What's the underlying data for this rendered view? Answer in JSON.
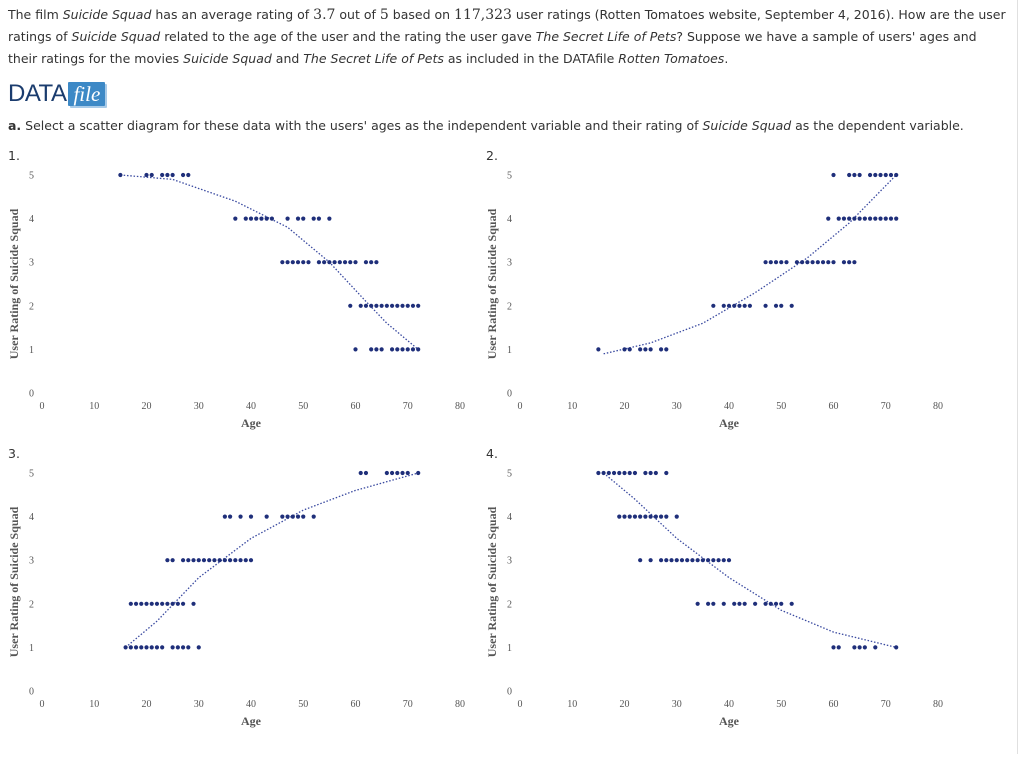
{
  "intro": {
    "t1": "The film ",
    "t2": "Suicide Squad",
    "t3": " has an average rating of ",
    "t4": "3.7",
    "t5": " out of ",
    "t6": "5",
    "t7": " based on ",
    "t8": "117,323",
    "t9": " user ratings (Rotten Tomatoes website, September 4, 2016). How are the user ratings of ",
    "t10": "Suicide Squad",
    "t11": " related to the age of the user and the rating the user gave ",
    "t12": "The Secret Life of Pets",
    "t13": "? Suppose we have a sample of users' ages and their ratings for the movies ",
    "t14": "Suicide Squad",
    "t15": " and ",
    "t16": "The Secret Life of Pets",
    "t17": " as included in the DATAfile ",
    "t18": "Rotten Tomatoes",
    "t19": "."
  },
  "datafile": {
    "data": "DATA",
    "file": "file"
  },
  "question": {
    "label": "a.",
    "t1": " Select a scatter diagram for these data with the users' ages as the independent variable and their rating of ",
    "t2": "Suicide Squad",
    "t3": " as the dependent variable."
  },
  "colors": {
    "dot": "#1f2f7a",
    "trend": "#3a4aa0"
  },
  "chart_data": [
    {
      "type": "scatter",
      "option_label": "1.",
      "xlabel": "Age",
      "ylabel": "User Rating of Suicide Squad",
      "xlim": [
        0,
        80
      ],
      "ylim": [
        0,
        5
      ],
      "xticks": [
        "0",
        "10",
        "20",
        "30",
        "40",
        "50",
        "60",
        "70",
        "80"
      ],
      "yticks": [
        "0",
        "1",
        "2",
        "3",
        "4",
        "5"
      ],
      "x": [
        15,
        20,
        21,
        23,
        24,
        25,
        27,
        28,
        37,
        39,
        40,
        41,
        42,
        43,
        44,
        47,
        49,
        50,
        52,
        53,
        55,
        46,
        47,
        48,
        49,
        50,
        51,
        53,
        54,
        55,
        56,
        57,
        58,
        59,
        60,
        62,
        63,
        64,
        59,
        61,
        62,
        63,
        64,
        65,
        66,
        67,
        68,
        69,
        70,
        71,
        72,
        60,
        63,
        64,
        65,
        67,
        68,
        69,
        70,
        71,
        72
      ],
      "y": [
        5,
        5,
        5,
        5,
        5,
        5,
        5,
        5,
        4,
        4,
        4,
        4,
        4,
        4,
        4,
        4,
        4,
        4,
        4,
        4,
        4,
        3,
        3,
        3,
        3,
        3,
        3,
        3,
        3,
        3,
        3,
        3,
        3,
        3,
        3,
        3,
        3,
        3,
        2,
        2,
        2,
        2,
        2,
        2,
        2,
        2,
        2,
        2,
        2,
        2,
        2,
        1,
        1,
        1,
        1,
        1,
        1,
        1,
        1,
        1,
        1
      ],
      "trend": [
        [
          15,
          5.0
        ],
        [
          25,
          4.9
        ],
        [
          37,
          4.4
        ],
        [
          47,
          3.8
        ],
        [
          55,
          3.0
        ],
        [
          62,
          2.1
        ],
        [
          66,
          1.6
        ],
        [
          72,
          1.0
        ]
      ]
    },
    {
      "type": "scatter",
      "option_label": "2.",
      "xlabel": "Age",
      "ylabel": "User Rating of Suicide Squad",
      "xlim": [
        0,
        80
      ],
      "ylim": [
        0,
        5
      ],
      "xticks": [
        "0",
        "10",
        "20",
        "30",
        "40",
        "50",
        "60",
        "70",
        "80"
      ],
      "yticks": [
        "0",
        "1",
        "2",
        "3",
        "4",
        "5"
      ],
      "x": [
        15,
        20,
        21,
        23,
        24,
        25,
        27,
        28,
        37,
        39,
        40,
        41,
        42,
        43,
        44,
        47,
        49,
        50,
        52,
        47,
        48,
        49,
        50,
        51,
        53,
        54,
        55,
        56,
        57,
        58,
        59,
        60,
        62,
        63,
        64,
        59,
        61,
        62,
        63,
        64,
        65,
        66,
        67,
        68,
        69,
        70,
        71,
        72,
        60,
        63,
        64,
        65,
        67,
        68,
        69,
        70,
        71,
        72
      ],
      "y": [
        1,
        1,
        1,
        1,
        1,
        1,
        1,
        1,
        2,
        2,
        2,
        2,
        2,
        2,
        2,
        2,
        2,
        2,
        2,
        3,
        3,
        3,
        3,
        3,
        3,
        3,
        3,
        3,
        3,
        3,
        3,
        3,
        3,
        3,
        3,
        4,
        4,
        4,
        4,
        4,
        4,
        4,
        4,
        4,
        4,
        4,
        4,
        4,
        5,
        5,
        5,
        5,
        5,
        5,
        5,
        5,
        5,
        5
      ],
      "trend": [
        [
          16,
          0.9
        ],
        [
          25,
          1.15
        ],
        [
          35,
          1.6
        ],
        [
          45,
          2.3
        ],
        [
          55,
          3.1
        ],
        [
          63,
          3.9
        ],
        [
          72,
          5.0
        ]
      ]
    },
    {
      "type": "scatter",
      "option_label": "3.",
      "xlabel": "Age",
      "ylabel": "User Rating of Suicide Squad",
      "xlim": [
        0,
        80
      ],
      "ylim": [
        0,
        5
      ],
      "xticks": [
        "0",
        "10",
        "20",
        "30",
        "40",
        "50",
        "60",
        "70",
        "80"
      ],
      "yticks": [
        "0",
        "1",
        "2",
        "3",
        "4",
        "5"
      ],
      "x": [
        16,
        17,
        18,
        19,
        20,
        21,
        22,
        23,
        25,
        26,
        27,
        28,
        30,
        17,
        18,
        19,
        20,
        21,
        22,
        23,
        24,
        25,
        26,
        27,
        29,
        24,
        25,
        27,
        28,
        29,
        30,
        31,
        32,
        33,
        34,
        35,
        36,
        37,
        38,
        39,
        40,
        35,
        36,
        38,
        40,
        43,
        46,
        47,
        48,
        49,
        50,
        52,
        61,
        62,
        66,
        67,
        68,
        69,
        70,
        72
      ],
      "y": [
        1,
        1,
        1,
        1,
        1,
        1,
        1,
        1,
        1,
        1,
        1,
        1,
        1,
        2,
        2,
        2,
        2,
        2,
        2,
        2,
        2,
        2,
        2,
        2,
        2,
        3,
        3,
        3,
        3,
        3,
        3,
        3,
        3,
        3,
        3,
        3,
        3,
        3,
        3,
        3,
        3,
        4,
        4,
        4,
        4,
        4,
        4,
        4,
        4,
        4,
        4,
        4,
        5,
        5,
        5,
        5,
        5,
        5,
        5,
        5
      ],
      "trend": [
        [
          16,
          1.0
        ],
        [
          22,
          1.6
        ],
        [
          30,
          2.6
        ],
        [
          40,
          3.5
        ],
        [
          50,
          4.15
        ],
        [
          60,
          4.6
        ],
        [
          72,
          5.0
        ]
      ]
    },
    {
      "type": "scatter",
      "option_label": "4.",
      "xlabel": "Age",
      "ylabel": "User Rating of Suicide Squad",
      "xlim": [
        0,
        80
      ],
      "ylim": [
        0,
        5
      ],
      "xticks": [
        "0",
        "10",
        "20",
        "30",
        "40",
        "50",
        "60",
        "70",
        "80"
      ],
      "yticks": [
        "0",
        "1",
        "2",
        "3",
        "4",
        "5"
      ],
      "x": [
        15,
        16,
        17,
        18,
        19,
        20,
        21,
        22,
        24,
        25,
        26,
        28,
        19,
        20,
        21,
        22,
        23,
        24,
        25,
        26,
        27,
        28,
        30,
        23,
        25,
        27,
        28,
        29,
        30,
        31,
        32,
        33,
        34,
        35,
        36,
        37,
        38,
        39,
        40,
        34,
        36,
        37,
        39,
        41,
        42,
        43,
        45,
        47,
        48,
        49,
        50,
        52,
        60,
        61,
        64,
        65,
        66,
        68,
        72
      ],
      "y": [
        5,
        5,
        5,
        5,
        5,
        5,
        5,
        5,
        5,
        5,
        5,
        5,
        4,
        4,
        4,
        4,
        4,
        4,
        4,
        4,
        4,
        4,
        4,
        3,
        3,
        3,
        3,
        3,
        3,
        3,
        3,
        3,
        3,
        3,
        3,
        3,
        3,
        3,
        3,
        2,
        2,
        2,
        2,
        2,
        2,
        2,
        2,
        2,
        2,
        2,
        2,
        2,
        1,
        1,
        1,
        1,
        1,
        1,
        1
      ],
      "trend": [
        [
          16,
          5.0
        ],
        [
          22,
          4.4
        ],
        [
          30,
          3.5
        ],
        [
          40,
          2.6
        ],
        [
          50,
          1.85
        ],
        [
          60,
          1.35
        ],
        [
          72,
          1.0
        ]
      ]
    }
  ]
}
